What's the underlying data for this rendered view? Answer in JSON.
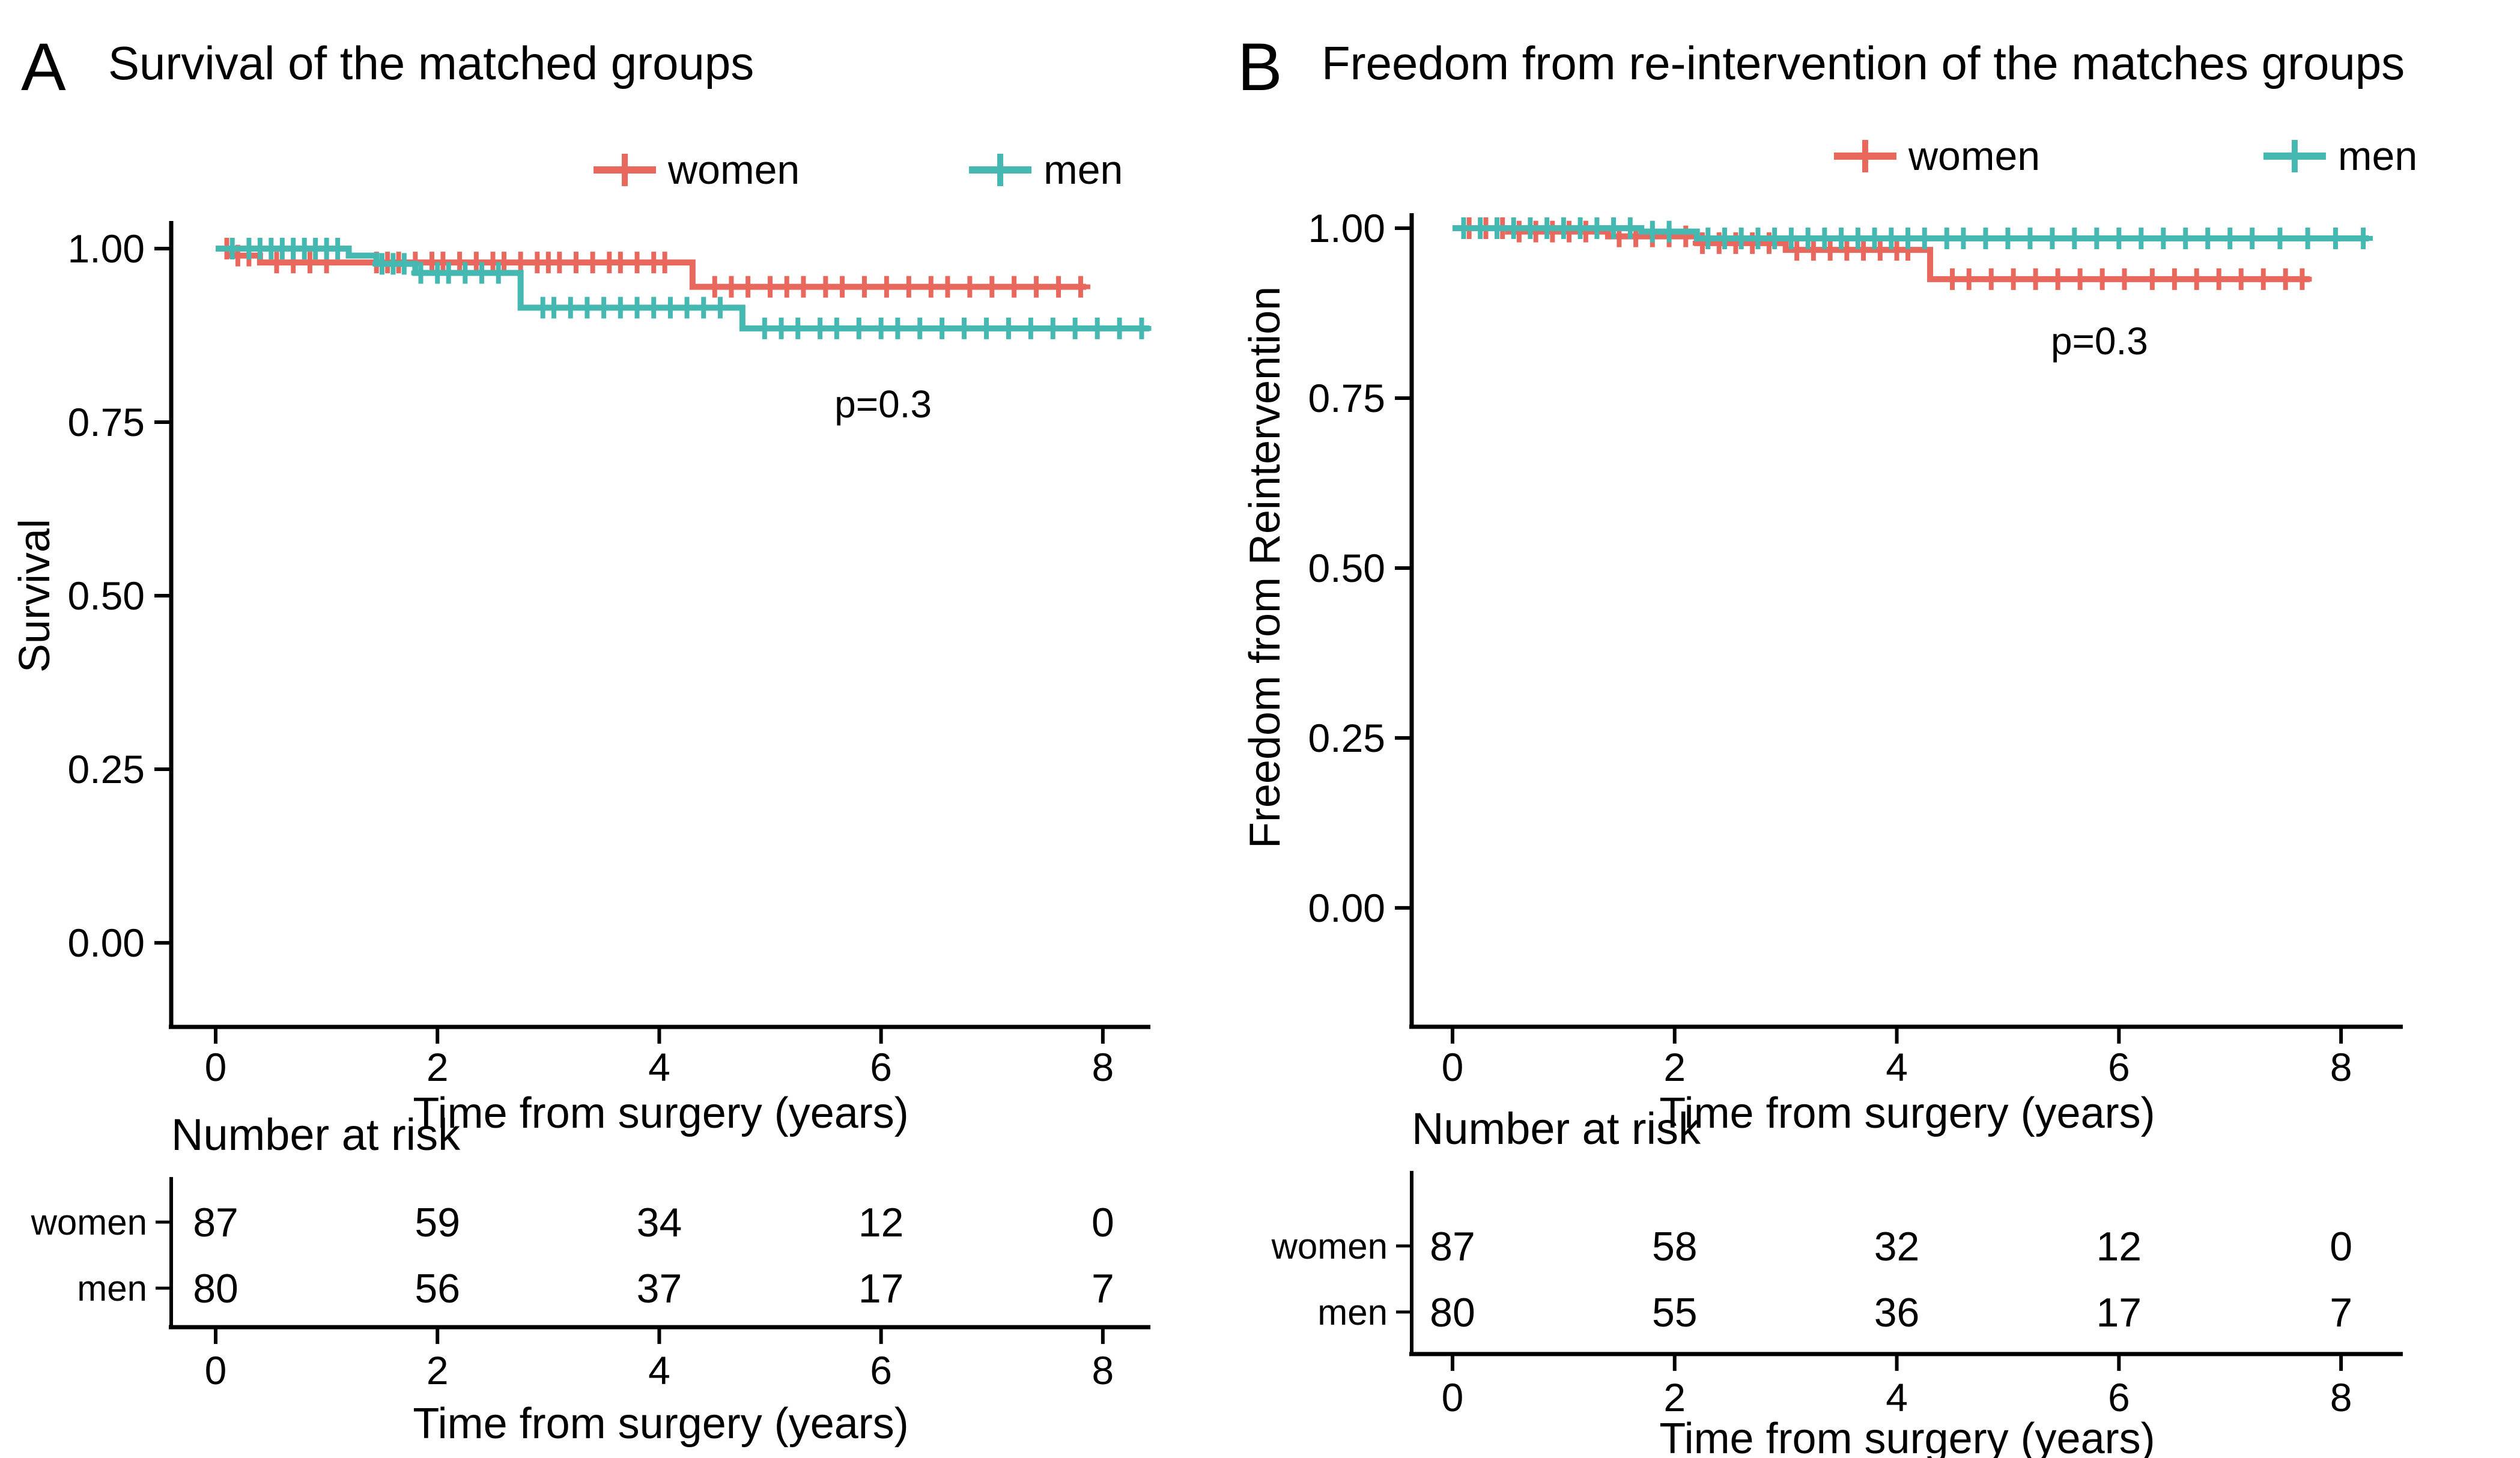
{
  "figure": {
    "background": "#ffffff",
    "colors": {
      "women": "#E8685D",
      "men": "#45B8B2",
      "axis": "#000000",
      "text": "#000000"
    }
  },
  "chart_data": [
    {
      "type": "line",
      "chart_kind": "kaplan-meier",
      "panel_label": "A",
      "title": "Survival of the matched groups",
      "xlabel": "Time from surgery (years)",
      "ylabel": "Survival",
      "x_ticks": [
        0,
        2,
        4,
        6,
        8
      ],
      "y_ticks": [
        "1.00",
        "0.75",
        "0.50",
        "0.25",
        "0.00"
      ],
      "xlim": [
        0,
        8.6
      ],
      "ylim": [
        0,
        1
      ],
      "grid": false,
      "legend_position": "top",
      "p_annotation": "p=0.3",
      "legend": [
        "women",
        "men"
      ],
      "series": [
        {
          "name": "women",
          "color_key": "women",
          "steps": [
            [
              0,
              1.0
            ],
            [
              0.15,
              0.99
            ],
            [
              0.4,
              0.98
            ],
            [
              4.3,
              0.945
            ]
          ],
          "end": 7.85,
          "censors": [
            0.1,
            0.2,
            0.3,
            0.55,
            0.7,
            0.85,
            1.0,
            1.45,
            1.55,
            1.65,
            1.8,
            1.95,
            2.05,
            2.2,
            2.35,
            2.5,
            2.6,
            2.75,
            2.9,
            3.0,
            3.1,
            3.25,
            3.4,
            3.55,
            3.65,
            3.8,
            3.95,
            4.05,
            4.5,
            4.65,
            4.8,
            5.0,
            5.15,
            5.3,
            5.5,
            5.65,
            5.85,
            6.05,
            6.25,
            6.45,
            6.6,
            6.8,
            7.0,
            7.2,
            7.4,
            7.6,
            7.8
          ]
        },
        {
          "name": "men",
          "color_key": "men",
          "steps": [
            [
              0,
              1.0
            ],
            [
              1.2,
              0.99
            ],
            [
              1.45,
              0.978
            ],
            [
              1.8,
              0.965
            ],
            [
              2.75,
              0.915
            ],
            [
              4.75,
              0.885
            ]
          ],
          "end": 8.42,
          "censors": [
            0.15,
            0.3,
            0.4,
            0.5,
            0.6,
            0.7,
            0.8,
            0.9,
            1.0,
            1.1,
            1.5,
            1.6,
            1.7,
            1.85,
            2.0,
            2.1,
            2.25,
            2.4,
            2.55,
            2.95,
            3.05,
            3.2,
            3.35,
            3.5,
            3.65,
            3.8,
            3.95,
            4.1,
            4.25,
            4.4,
            4.55,
            4.95,
            5.1,
            5.25,
            5.45,
            5.6,
            5.8,
            6.0,
            6.15,
            6.35,
            6.55,
            6.75,
            6.95,
            7.15,
            7.35,
            7.55,
            7.75,
            7.95,
            8.15,
            8.35
          ]
        }
      ],
      "risk_table": {
        "title": "Number at risk",
        "times": [
          0,
          2,
          4,
          6,
          8
        ],
        "rows": [
          {
            "label": "women",
            "values": [
              "87",
              "59",
              "34",
              "12",
              "0"
            ]
          },
          {
            "label": "men",
            "values": [
              "80",
              "56",
              "37",
              "17",
              "7"
            ]
          }
        ]
      }
    },
    {
      "type": "line",
      "chart_kind": "kaplan-meier",
      "panel_label": "B",
      "title": "Freedom from re-intervention of the matches groups",
      "xlabel": "Time from surgery (years)",
      "ylabel": "Freedom from Reintervention",
      "x_ticks": [
        0,
        2,
        4,
        6,
        8
      ],
      "y_ticks": [
        "1.00",
        "0.75",
        "0.50",
        "0.25",
        "0.00"
      ],
      "xlim": [
        0,
        8.6
      ],
      "ylim": [
        0,
        1
      ],
      "grid": false,
      "legend_position": "top",
      "p_annotation": "p=0.3",
      "legend": [
        "women",
        "men"
      ],
      "series": [
        {
          "name": "women",
          "color_key": "women",
          "steps": [
            [
              0,
              1.0
            ],
            [
              0.5,
              0.995
            ],
            [
              1.4,
              0.988
            ],
            [
              2.2,
              0.978
            ],
            [
              3.0,
              0.968
            ],
            [
              4.3,
              0.925
            ]
          ],
          "end": 7.72,
          "censors": [
            0.15,
            0.3,
            0.45,
            0.6,
            0.75,
            0.9,
            1.05,
            1.2,
            1.5,
            1.65,
            1.8,
            1.95,
            2.1,
            2.25,
            2.4,
            2.55,
            2.7,
            2.85,
            3.1,
            3.25,
            3.4,
            3.55,
            3.7,
            3.85,
            4.0,
            4.1,
            4.5,
            4.65,
            4.85,
            5.05,
            5.25,
            5.45,
            5.65,
            5.85,
            6.05,
            6.3,
            6.5,
            6.7,
            6.9,
            7.1,
            7.3,
            7.5,
            7.65
          ]
        },
        {
          "name": "men",
          "color_key": "men",
          "steps": [
            [
              0,
              1.0
            ],
            [
              1.7,
              0.995
            ],
            [
              2.2,
              0.985
            ]
          ],
          "end": 8.25,
          "censors": [
            0.1,
            0.25,
            0.4,
            0.55,
            0.7,
            0.85,
            1.0,
            1.15,
            1.3,
            1.45,
            1.6,
            1.8,
            1.95,
            2.3,
            2.45,
            2.6,
            2.75,
            2.9,
            3.05,
            3.2,
            3.35,
            3.5,
            3.65,
            3.8,
            3.95,
            4.1,
            4.25,
            4.45,
            4.6,
            4.8,
            5.0,
            5.2,
            5.4,
            5.6,
            5.8,
            6.0,
            6.2,
            6.4,
            6.6,
            6.8,
            7.0,
            7.2,
            7.45,
            7.7,
            7.95,
            8.2
          ]
        }
      ],
      "risk_table": {
        "title": "Number at risk",
        "times": [
          0,
          2,
          4,
          6,
          8
        ],
        "rows": [
          {
            "label": "women",
            "values": [
              "87",
              "58",
              "32",
              "12",
              "0"
            ]
          },
          {
            "label": "men",
            "values": [
              "80",
              "55",
              "36",
              "17",
              "7"
            ]
          }
        ]
      }
    }
  ]
}
